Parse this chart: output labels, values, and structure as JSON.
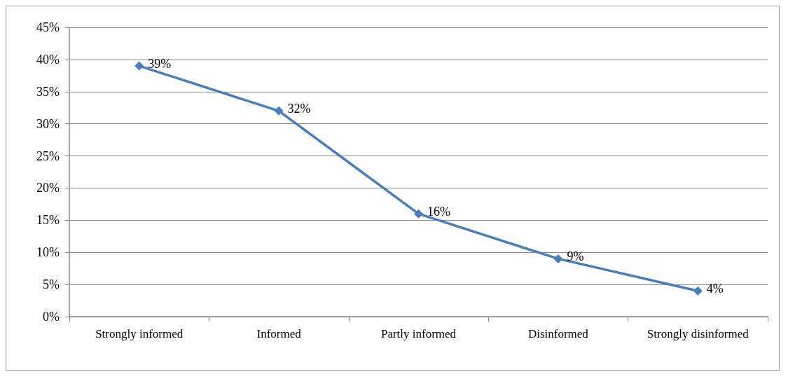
{
  "chart_data": {
    "type": "line",
    "categories": [
      "Strongly informed",
      "Informed",
      "Partly informed",
      "Disinformed",
      "Strongly disinformed"
    ],
    "series": [
      {
        "color": "#4a7ebb",
        "values": [
          39,
          32,
          16,
          9,
          4
        ],
        "value_labels": [
          "39%",
          "32%",
          "16%",
          "9%",
          "4%"
        ]
      }
    ],
    "ylim": [
      0,
      45
    ],
    "yticks": [
      {
        "value": 0,
        "label": "0%"
      },
      {
        "value": 5,
        "label": "5%"
      },
      {
        "value": 10,
        "label": "10%"
      },
      {
        "value": 15,
        "label": "15%"
      },
      {
        "value": 20,
        "label": "20%"
      },
      {
        "value": 25,
        "label": "25%"
      },
      {
        "value": 30,
        "label": "30%"
      },
      {
        "value": 35,
        "label": "35%"
      },
      {
        "value": 40,
        "label": "40%"
      },
      {
        "value": 45,
        "label": "45%"
      }
    ],
    "grid": "y",
    "marker": "diamond",
    "line_style": "solid"
  }
}
